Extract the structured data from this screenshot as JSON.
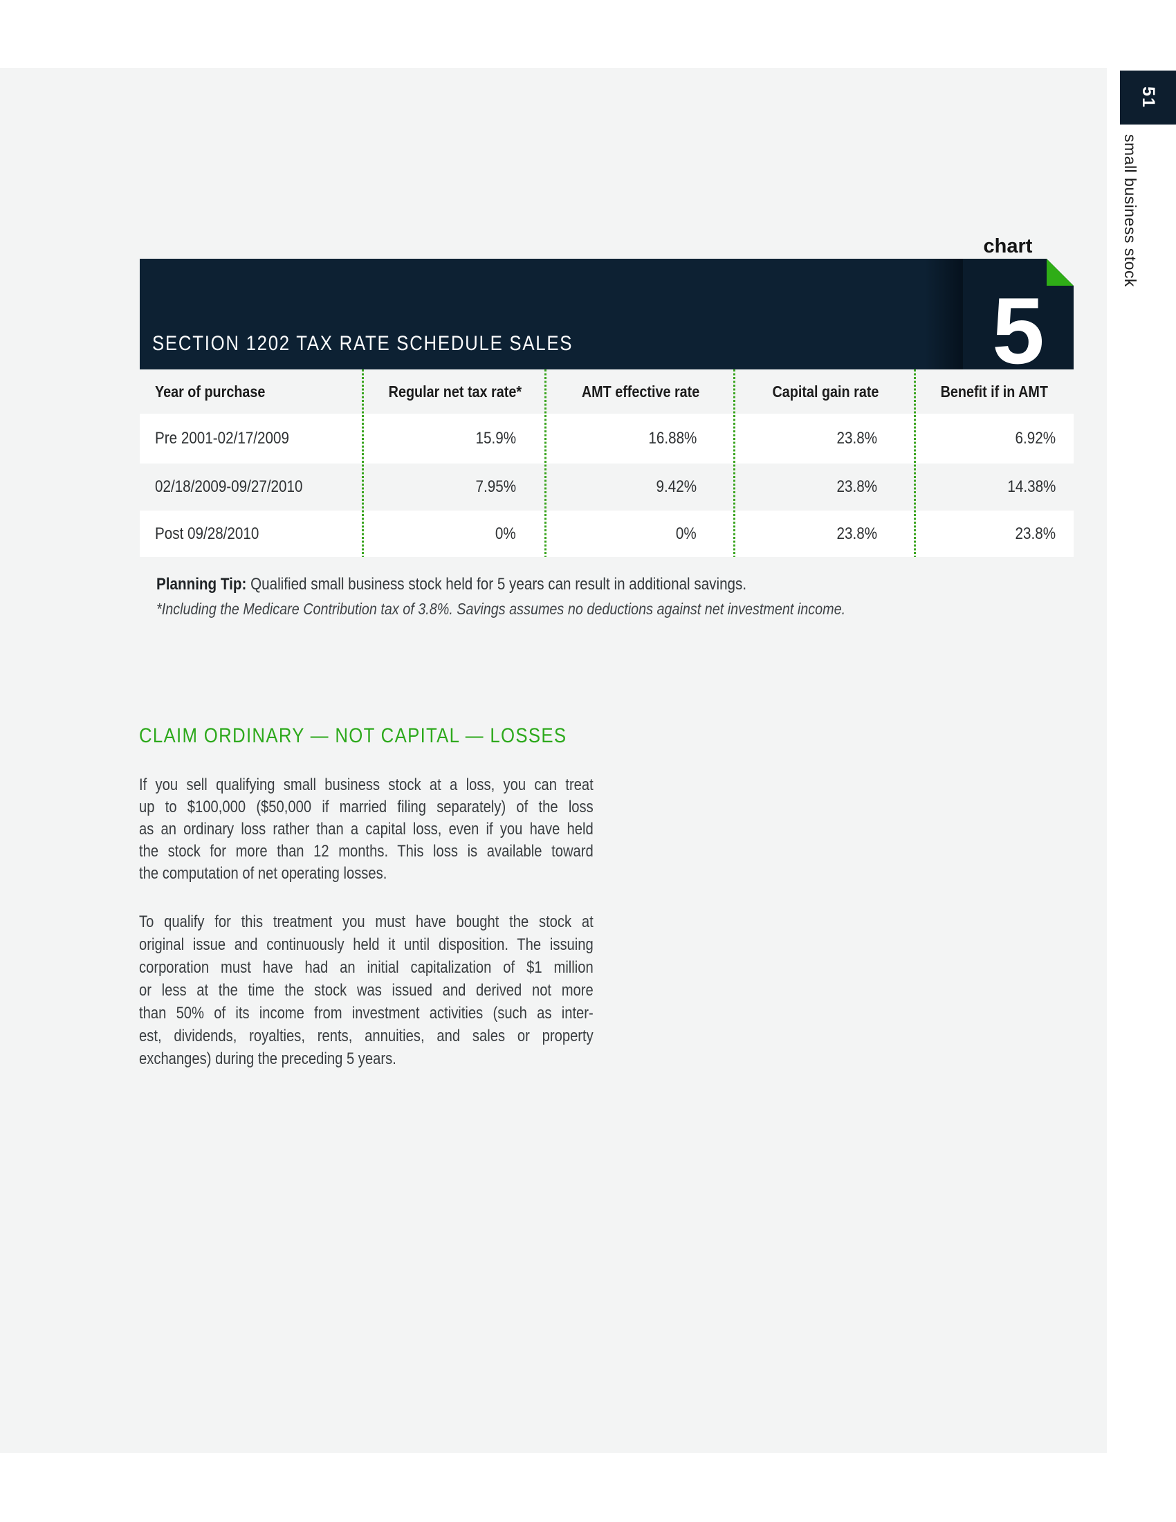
{
  "page": {
    "number": "51",
    "side_label": "small business stock",
    "background_color": "#f3f4f4",
    "tab_color": "#0d1e2e"
  },
  "chart_header": {
    "kicker": "chart",
    "number": "5",
    "title": "SECTION 1202 TAX RATE SCHEDULE SALES",
    "band_color": "#0d2133",
    "box_color": "#0b1c2c",
    "fold_color": "#2fad17"
  },
  "table": {
    "columns": [
      "Year of purchase",
      "Regular net tax rate*",
      "AMT effective rate",
      "Capital gain rate",
      "Benefit if in AMT"
    ],
    "rows": [
      [
        "Pre 2001-02/17/2009",
        "15.9%",
        "16.88%",
        "23.8%",
        "6.92%"
      ],
      [
        "02/18/2009-09/27/2010",
        "7.95%",
        "9.42%",
        "23.8%",
        "14.38%"
      ],
      [
        "Post 09/28/2010",
        "0%",
        "0%",
        "23.8%",
        "23.8%"
      ]
    ],
    "divider_color": "#3aa51f"
  },
  "chart_data": {
    "type": "table",
    "title": "SECTION 1202 TAX RATE SCHEDULE SALES",
    "categories": [
      "Pre 2001-02/17/2009",
      "02/18/2009-09/27/2010",
      "Post 09/28/2010"
    ],
    "series": [
      {
        "name": "Regular net tax rate*",
        "values": [
          15.9,
          7.95,
          0
        ]
      },
      {
        "name": "AMT effective rate",
        "values": [
          16.88,
          9.42,
          0
        ]
      },
      {
        "name": "Capital gain rate",
        "values": [
          23.8,
          23.8,
          23.8
        ]
      },
      {
        "name": "Benefit if in AMT",
        "values": [
          6.92,
          14.38,
          23.8
        ]
      }
    ],
    "value_unit": "%"
  },
  "planning_tip": {
    "label": "Planning Tip:",
    "text": " Qualified small business stock held for 5 years can result in additional savings.",
    "footnote": "*Including the Medicare Contribution tax of 3.8%. Savings assumes no deductions against net investment income."
  },
  "section": {
    "heading": "CLAIM ORDINARY — NOT CAPITAL — LOSSES",
    "heading_color": "#2da91c",
    "paragraph1": [
      "If you sell qualifying small business stock at a loss, you can treat",
      "up to $100,000 ($50,000 if married filing separately) of the loss",
      "as an ordinary loss rather than a capital loss, even if you have held",
      "the stock for more than 12 months. This loss is available toward",
      "the computation of net operating losses."
    ],
    "paragraph2": [
      "To qualify for this treatment you must have bought the stock at",
      "original issue and continuously held it until disposition. The issuing",
      "corporation must have had an initial capitalization of $1 million",
      "or less at the time the stock was issued and derived not more",
      "than 50% of its income from investment activities (such as inter-",
      "est, dividends, royalties, rents, annuities, and sales or property",
      "exchanges) during the preceding 5 years."
    ]
  }
}
